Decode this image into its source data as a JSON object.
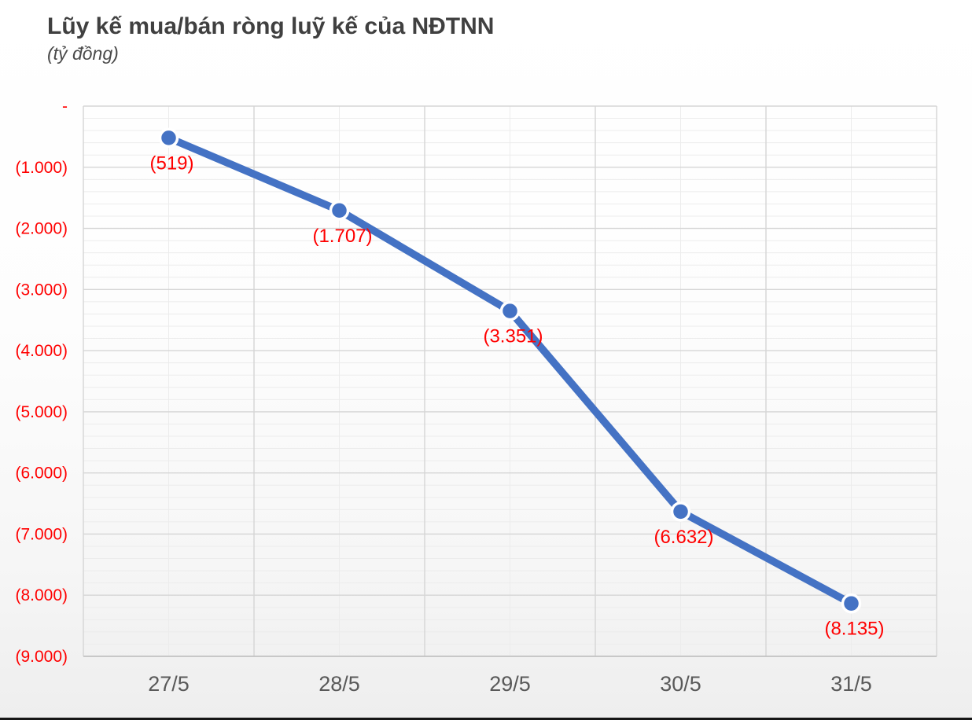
{
  "chart_data": {
    "type": "line",
    "title": "Lũy kế mua/bán ròng luỹ kế của NĐTNN",
    "subtitle": "(tỷ đồng)",
    "categories": [
      "27/5",
      "28/5",
      "29/5",
      "30/5",
      "31/5"
    ],
    "series": [
      {
        "name": "Lũy kế mua/bán ròng của NĐTNN",
        "values": [
          -519,
          -1707,
          -3351,
          -6632,
          -8135
        ]
      }
    ],
    "data_labels": [
      "(519)",
      "(1.707)",
      "(3.351)",
      "(6.632)",
      "(8.135)"
    ],
    "y_tick_labels": [
      "-",
      "(1.000)",
      "(2.000)",
      "(3.000)",
      "(4.000)",
      "(5.000)",
      "(6.000)",
      "(7.000)",
      "(8.000)",
      "(9.000)"
    ],
    "ylim": [
      -9000,
      0
    ],
    "y_major_step": 1000,
    "y_minor_step": 200,
    "grid": true,
    "legend_position": "none",
    "colors": {
      "line": "#4472C4",
      "marker_fill": "#4472C4",
      "marker_ring": "#FFFFFF",
      "data_label": "#FF0000",
      "y_axis_label": "#FF0000",
      "x_axis_label": "#595959",
      "title": "#404040",
      "grid_major": "#D5D5D5",
      "grid_minor": "#ECECEC",
      "axis_line": "#BFBFBF"
    }
  }
}
